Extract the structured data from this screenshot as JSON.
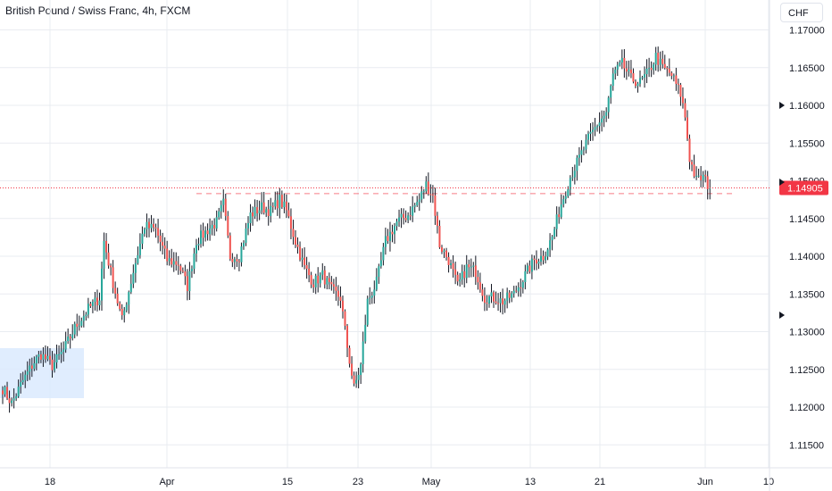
{
  "header": {
    "title": "British Pound / Swiss Franc, 4h, FXCM",
    "currency": "CHF"
  },
  "colors": {
    "up": "#26a69a",
    "down": "#ef5350",
    "wick": "#131722",
    "grid": "#e9ecf1",
    "box": "#dbeafe",
    "current": "#f23645"
  },
  "chart_data": {
    "type": "candlestick",
    "title": "British Pound / Swiss Franc, 4h, FXCM",
    "ylabel": "CHF",
    "ylim": [
      1.1125,
      1.172
    ],
    "y_ticks": [
      "1.17000",
      "1.16500",
      "1.16000",
      "1.15500",
      "1.15000",
      "1.14500",
      "1.14000",
      "1.13500",
      "1.13000",
      "1.12500",
      "1.12000",
      "1.11500"
    ],
    "x_ticks": [
      "18",
      "Apr",
      "15",
      "23",
      "May",
      "13",
      "21",
      "Jun",
      "10"
    ],
    "current_price": "1.14905",
    "resistance_level": 1.1483,
    "anchors": [
      [
        0,
        1.1225
      ],
      [
        4,
        1.1205
      ],
      [
        9,
        1.1235
      ],
      [
        14,
        1.126
      ],
      [
        17,
        1.127
      ],
      [
        22,
        1.1255
      ],
      [
        27,
        1.1275
      ],
      [
        32,
        1.1305
      ],
      [
        38,
        1.133
      ],
      [
        43,
        1.1345
      ],
      [
        45,
        1.142
      ],
      [
        49,
        1.1365
      ],
      [
        53,
        1.1315
      ],
      [
        58,
        1.138
      ],
      [
        63,
        1.144
      ],
      [
        68,
        1.1435
      ],
      [
        73,
        1.1395
      ],
      [
        78,
        1.139
      ],
      [
        82,
        1.136
      ],
      [
        86,
        1.142
      ],
      [
        91,
        1.1435
      ],
      [
        95,
        1.1445
      ],
      [
        98,
        1.147
      ],
      [
        101,
        1.14
      ],
      [
        105,
        1.14
      ],
      [
        110,
        1.1455
      ],
      [
        115,
        1.1465
      ],
      [
        119,
        1.146
      ],
      [
        123,
        1.1475
      ],
      [
        126,
        1.146
      ],
      [
        130,
        1.142
      ],
      [
        134,
        1.1385
      ],
      [
        138,
        1.1365
      ],
      [
        142,
        1.1375
      ],
      [
        146,
        1.1355
      ],
      [
        150,
        1.1345
      ],
      [
        153,
        1.128
      ],
      [
        156,
        1.1225
      ],
      [
        159,
        1.1255
      ],
      [
        162,
        1.134
      ],
      [
        166,
        1.1365
      ],
      [
        170,
        1.142
      ],
      [
        175,
        1.1445
      ],
      [
        180,
        1.1455
      ],
      [
        185,
        1.1475
      ],
      [
        188,
        1.1495
      ],
      [
        191,
        1.148
      ],
      [
        194,
        1.1415
      ],
      [
        198,
        1.1395
      ],
      [
        202,
        1.136
      ],
      [
        206,
        1.1385
      ],
      [
        210,
        1.138
      ],
      [
        214,
        1.1345
      ],
      [
        218,
        1.1345
      ],
      [
        222,
        1.134
      ],
      [
        227,
        1.135
      ],
      [
        232,
        1.1375
      ],
      [
        236,
        1.1395
      ],
      [
        240,
        1.14
      ],
      [
        244,
        1.1425
      ],
      [
        248,
        1.147
      ],
      [
        252,
        1.1505
      ],
      [
        256,
        1.153
      ],
      [
        260,
        1.1555
      ],
      [
        264,
        1.1575
      ],
      [
        268,
        1.159
      ],
      [
        271,
        1.164
      ],
      [
        275,
        1.1655
      ],
      [
        279,
        1.1635
      ],
      [
        283,
        1.163
      ],
      [
        287,
        1.1645
      ],
      [
        290,
        1.1665
      ],
      [
        293,
        1.165
      ],
      [
        297,
        1.164
      ],
      [
        301,
        1.1615
      ],
      [
        303,
        1.1585
      ],
      [
        305,
        1.153
      ],
      [
        308,
        1.15
      ],
      [
        311,
        1.1505
      ],
      [
        314,
        1.149
      ]
    ]
  }
}
